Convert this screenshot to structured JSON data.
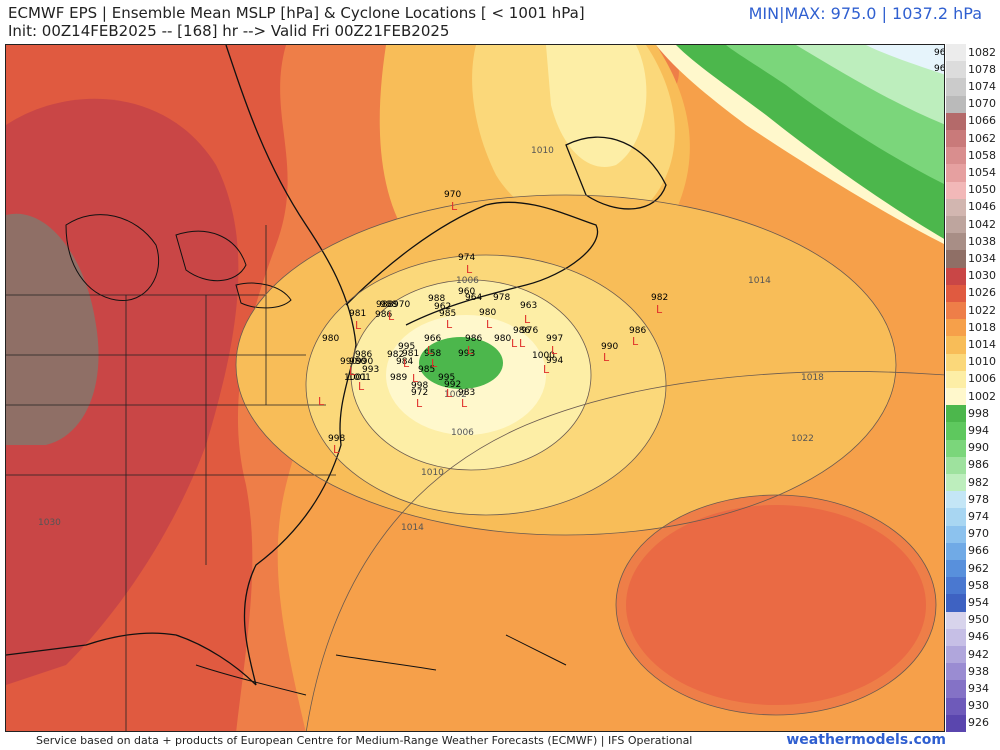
{
  "header": {
    "title": "ECMWF EPS | Ensemble Mean MSLP [hPa] & Cyclone Locations [ < 1001 hPa]",
    "subtitle": "Init: 00Z14FEB2025 -- [168] hr --> Valid Fri 00Z21FEB2025",
    "minmax": "MIN|MAX: 975.0 | 1037.2 hPa"
  },
  "footer": {
    "credit": "Service based on data + products of European Centre for Medium-Range Weather Forecasts (ECMWF) | IFS Operational",
    "site": "weathermodels.com"
  },
  "colors": {
    "accent": "#2f5fd0",
    "low_green": "#4cb74c",
    "cyclone_marker": "#e0302a"
  },
  "contour_labels": [
    "1006",
    "1010",
    "1014",
    "1018",
    "1022",
    "1010",
    "1014",
    "1006",
    "1030",
    "1002"
  ],
  "cyclone_labels": [
    "964",
    "962",
    "974",
    "970",
    "988",
    "970",
    "988",
    "962",
    "985",
    "964",
    "960",
    "978",
    "963",
    "980",
    "981",
    "986",
    "980",
    "966",
    "980",
    "986",
    "976",
    "997",
    "1000",
    "994",
    "993",
    "995",
    "981",
    "984",
    "958",
    "986",
    "990",
    "989",
    "998",
    "985",
    "995",
    "992",
    "972",
    "1001",
    "983",
    "993",
    "980",
    "990",
    "986",
    "998",
    "982",
    "986",
    "990",
    "988",
    "982",
    "1001"
  ],
  "legend": {
    "labels": [
      "1082",
      "1078",
      "1074",
      "1070",
      "1066",
      "1062",
      "1058",
      "1054",
      "1050",
      "1046",
      "1042",
      "1038",
      "1034",
      "1030",
      "1026",
      "1022",
      "1018",
      "1014",
      "1010",
      "1006",
      "1002",
      "998",
      "994",
      "990",
      "986",
      "982",
      "978",
      "974",
      "970",
      "966",
      "962",
      "958",
      "954",
      "950",
      "946",
      "942",
      "938",
      "934",
      "930",
      "926"
    ],
    "colors": [
      "#ececec",
      "#dcdcdc",
      "#cbcbcb",
      "#bababa",
      "#b46a6a",
      "#c97a7a",
      "#d98e8e",
      "#e6a0a0",
      "#f2b8b8",
      "#d2b6b0",
      "#bea59e",
      "#a88e86",
      "#8f6f66",
      "#c94646",
      "#e05a40",
      "#ee7e48",
      "#f6a04a",
      "#f8bd58",
      "#fbd87a",
      "#fdeea6",
      "#fff8cc",
      "#4cb74c",
      "#5ec85e",
      "#7bd67b",
      "#9ee29e",
      "#bdeebd",
      "#c4e6f6",
      "#a8d6f2",
      "#8cc2ee",
      "#70aae6",
      "#5890dc",
      "#4a78d0",
      "#3e62c2",
      "#d8d4ec",
      "#c6bfe6",
      "#b0a6dc",
      "#9a8cd2",
      "#8472c6",
      "#6e5aba",
      "#5a46ae"
    ]
  }
}
